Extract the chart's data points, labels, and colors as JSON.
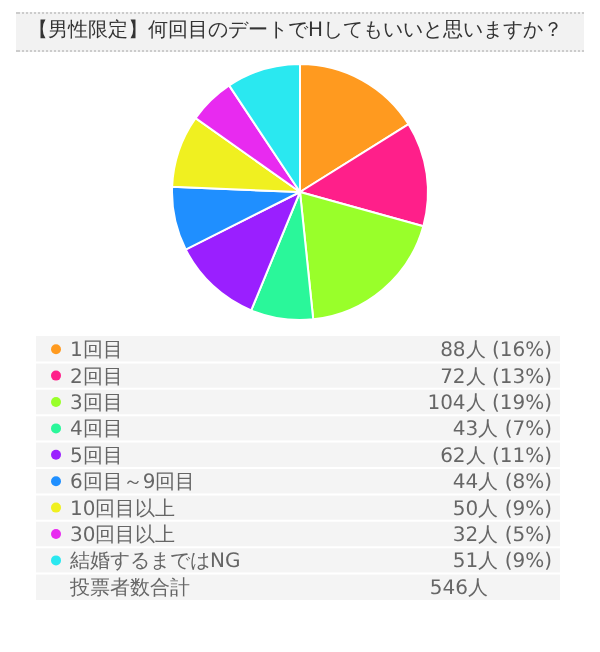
{
  "chart_data": {
    "type": "pie",
    "title": "【男性限定】何回目のデートでHしてもいいと思いますか？",
    "categories": [
      "1回目",
      "2回目",
      "3回目",
      "4回目",
      "5回目",
      "6回目～9回目",
      "10回目以上",
      "30回目以上",
      "結婚するまではNG"
    ],
    "values": [
      88,
      72,
      104,
      43,
      62,
      44,
      50,
      32,
      51
    ],
    "value_labels": [
      "88人 (16%)",
      "72人 (13%)",
      "104人 (19%)",
      "43人 (7%)",
      "62人 (11%)",
      "44人 (8%)",
      "50人 (9%)",
      "32人 (5%)",
      "51人 (9%)"
    ],
    "colors": [
      "#ff9a1f",
      "#ff1f8a",
      "#99ff2a",
      "#2af79a",
      "#9a1fff",
      "#1f8fff",
      "#f0f020",
      "#e82af0",
      "#2ae8f0"
    ],
    "legend": "bottom",
    "annotations": [
      "投票者数合計",
      "546人"
    ]
  }
}
